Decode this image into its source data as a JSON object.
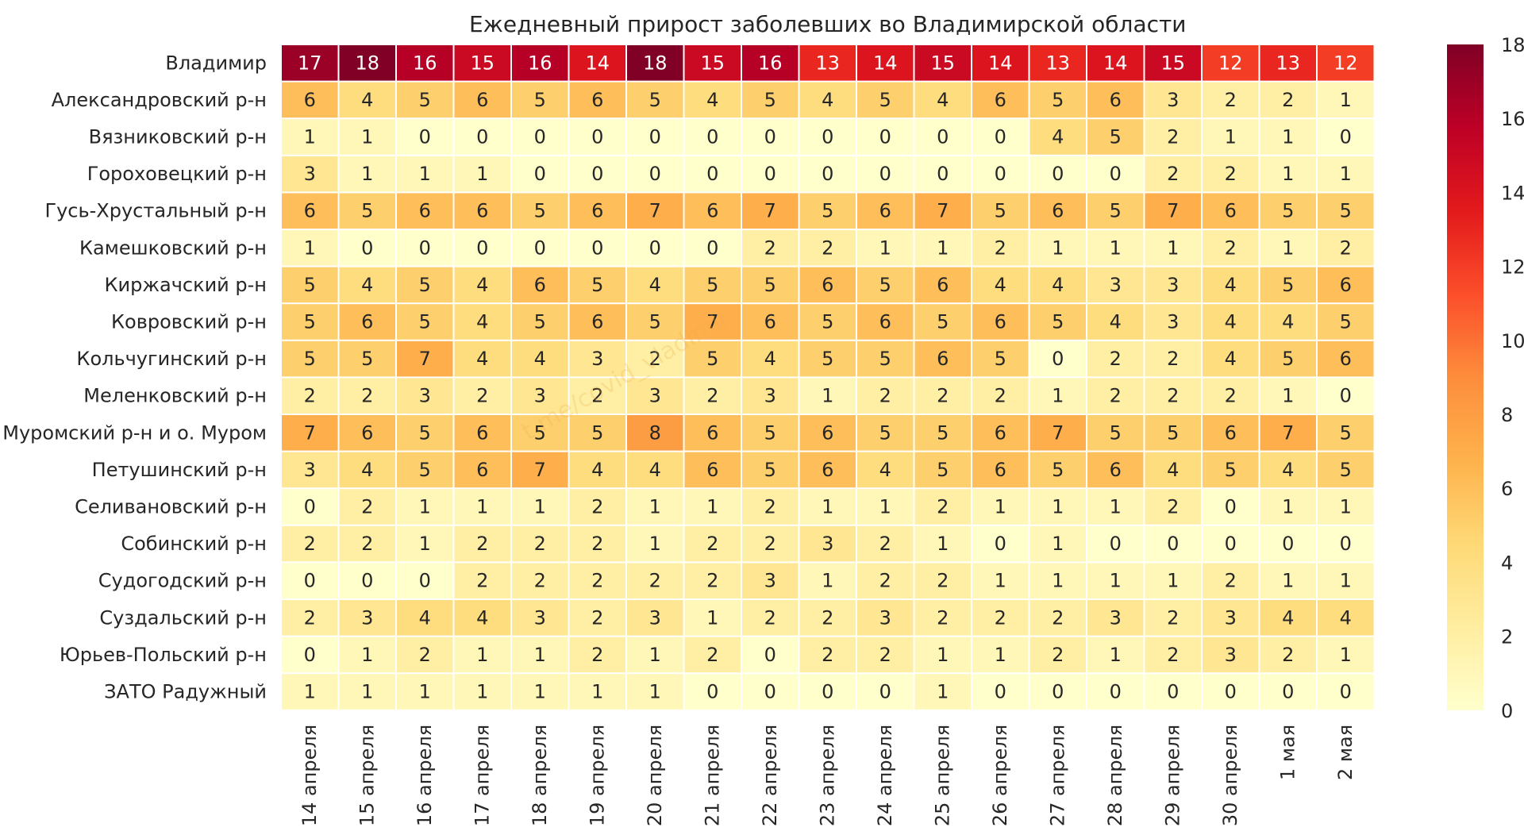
{
  "chart_data": {
    "type": "heatmap",
    "title": "Ежедневный прирост заболевших во Владимирской области",
    "rows": [
      "Владимир",
      "Александровский р-н",
      "Вязниковский р-н",
      "Гороховецкий р-н",
      "Гусь-Хрустальный р-н",
      "Камешковский р-н",
      "Киржачский р-н",
      "Ковровский р-н",
      "Кольчугинский р-н",
      "Меленковский р-н",
      "Муромский р-н и о. Муром",
      "Петушинский р-н",
      "Селивановский р-н",
      "Собинский р-н",
      "Судогодский р-н",
      "Суздальский р-н",
      "Юрьев-Польский р-н",
      "ЗАТО Радужный"
    ],
    "columns": [
      "14 апреля",
      "15 апреля",
      "16 апреля",
      "17 апреля",
      "18 апреля",
      "19 апреля",
      "20 апреля",
      "21 апреля",
      "22 апреля",
      "23 апреля",
      "24 апреля",
      "25 апреля",
      "26 апреля",
      "27 апреля",
      "28 апреля",
      "29 апреля",
      "30 апреля",
      "1 мая",
      "2 мая"
    ],
    "values": [
      [
        17,
        18,
        16,
        15,
        16,
        14,
        18,
        15,
        16,
        13,
        14,
        15,
        14,
        13,
        14,
        15,
        12,
        13,
        12
      ],
      [
        6,
        4,
        5,
        6,
        5,
        6,
        5,
        4,
        5,
        4,
        5,
        4,
        6,
        5,
        6,
        3,
        2,
        2,
        1
      ],
      [
        1,
        1,
        0,
        0,
        0,
        0,
        0,
        0,
        0,
        0,
        0,
        0,
        0,
        4,
        5,
        2,
        1,
        1,
        0
      ],
      [
        3,
        1,
        1,
        1,
        0,
        0,
        0,
        0,
        0,
        0,
        0,
        0,
        0,
        0,
        0,
        2,
        2,
        1,
        1
      ],
      [
        6,
        5,
        6,
        6,
        5,
        6,
        7,
        6,
        7,
        5,
        6,
        7,
        5,
        6,
        5,
        7,
        6,
        5,
        5
      ],
      [
        1,
        0,
        0,
        0,
        0,
        0,
        0,
        0,
        2,
        2,
        1,
        1,
        2,
        1,
        1,
        1,
        2,
        1,
        2
      ],
      [
        5,
        4,
        5,
        4,
        6,
        5,
        4,
        5,
        5,
        6,
        5,
        6,
        4,
        4,
        3,
        3,
        4,
        5,
        6
      ],
      [
        5,
        6,
        5,
        4,
        5,
        6,
        5,
        7,
        6,
        5,
        6,
        5,
        6,
        5,
        4,
        3,
        4,
        4,
        5
      ],
      [
        5,
        5,
        7,
        4,
        4,
        3,
        2,
        5,
        4,
        5,
        5,
        6,
        5,
        0,
        2,
        2,
        4,
        5,
        6
      ],
      [
        2,
        2,
        3,
        2,
        3,
        2,
        3,
        2,
        3,
        1,
        2,
        2,
        2,
        1,
        2,
        2,
        2,
        1,
        0
      ],
      [
        7,
        6,
        5,
        6,
        5,
        5,
        8,
        6,
        5,
        6,
        5,
        5,
        6,
        7,
        5,
        5,
        6,
        7,
        5
      ],
      [
        3,
        4,
        5,
        6,
        7,
        4,
        4,
        6,
        5,
        6,
        4,
        5,
        6,
        5,
        6,
        4,
        5,
        4,
        5
      ],
      [
        0,
        2,
        1,
        1,
        1,
        2,
        1,
        1,
        2,
        1,
        1,
        2,
        1,
        1,
        1,
        2,
        0,
        1,
        1
      ],
      [
        2,
        2,
        1,
        2,
        2,
        2,
        1,
        2,
        2,
        3,
        2,
        1,
        0,
        1,
        0,
        0,
        0,
        0,
        0
      ],
      [
        0,
        0,
        0,
        2,
        2,
        2,
        2,
        2,
        3,
        1,
        2,
        2,
        1,
        1,
        1,
        1,
        2,
        1,
        1
      ],
      [
        2,
        3,
        4,
        4,
        3,
        2,
        3,
        1,
        2,
        2,
        3,
        2,
        2,
        2,
        3,
        2,
        3,
        4,
        4
      ],
      [
        0,
        1,
        2,
        1,
        1,
        2,
        1,
        2,
        0,
        2,
        2,
        1,
        1,
        2,
        1,
        2,
        3,
        2,
        1
      ],
      [
        1,
        1,
        1,
        1,
        1,
        1,
        1,
        0,
        0,
        0,
        0,
        1,
        0,
        0,
        0,
        0,
        0,
        0,
        0
      ]
    ],
    "vmin": 0,
    "vmax": 18,
    "colormap": "YlOrRd",
    "colorbar_ticks": [
      0,
      2,
      4,
      6,
      8,
      10,
      12,
      14,
      16,
      18
    ],
    "colorbar_position": "right",
    "watermark": "t.me/covid_vladimir"
  }
}
